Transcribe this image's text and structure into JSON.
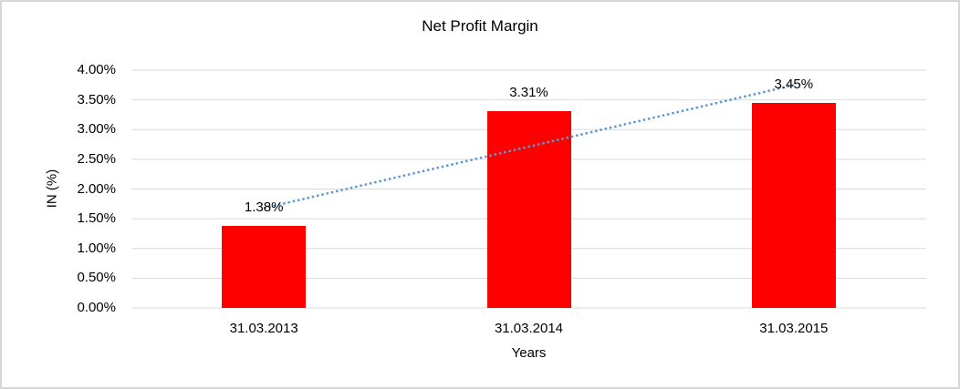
{
  "window": {
    "background": "#ffffff",
    "border_color": "#d7d7d7"
  },
  "chart_data": {
    "type": "bar",
    "title": "Net Profit Margin",
    "xlabel": "Years",
    "ylabel": "IN (%)",
    "categories": [
      "31.03.2013",
      "31.03.2014",
      "31.03.2015"
    ],
    "series": [
      {
        "name": "Net Profit Margin",
        "values": [
          1.38,
          3.31,
          3.45
        ],
        "data_labels": [
          "1.38%",
          "3.31%",
          "3.45%"
        ],
        "color": "#ff0000"
      }
    ],
    "ylim": [
      0,
      4
    ],
    "ytick_step": 0.5,
    "ytick_labels": [
      "0.00%",
      "0.50%",
      "1.00%",
      "1.50%",
      "2.00%",
      "2.50%",
      "3.00%",
      "3.50%",
      "4.00%"
    ],
    "grid": true,
    "grid_color": "#d9d9d9",
    "legend_position": "none",
    "trendline": {
      "type": "linear",
      "style": "dotted",
      "color": "#5b9bd5"
    }
  }
}
